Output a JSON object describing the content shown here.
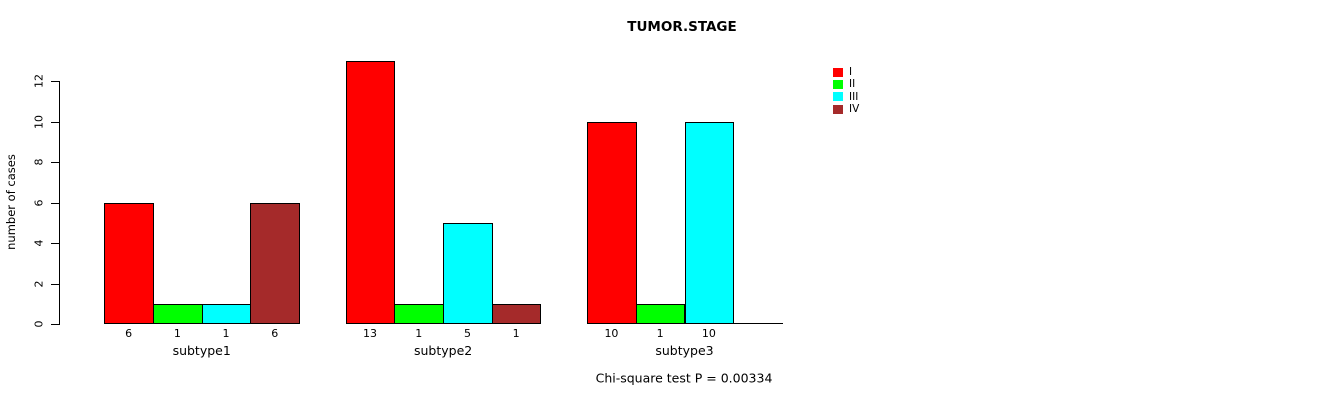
{
  "chart_data": {
    "type": "bar",
    "title": "TUMOR.STAGE",
    "xlabel": "",
    "ylabel": "number of cases",
    "ylim": [
      0,
      13
    ],
    "yticks": [
      0,
      2,
      4,
      6,
      8,
      10,
      12
    ],
    "grid": false,
    "legend_position": "top-right",
    "categories": [
      "subtype1",
      "subtype2",
      "subtype3"
    ],
    "series": [
      {
        "name": "I",
        "color": "#FF0000",
        "values": [
          6,
          13,
          10
        ]
      },
      {
        "name": "II",
        "color": "#00FF00",
        "values": [
          1,
          1,
          1
        ]
      },
      {
        "name": "III",
        "color": "#00FFFF",
        "values": [
          1,
          5,
          10
        ]
      },
      {
        "name": "IV",
        "color": "#A52A2A",
        "values": [
          6,
          1,
          0
        ]
      }
    ],
    "bar_value_labels": [
      [
        "6",
        "1",
        "1",
        "6"
      ],
      [
        "13",
        "1",
        "5",
        "1"
      ],
      [
        "10",
        "1",
        "10",
        ""
      ]
    ],
    "annotation": "Chi-square test P = 0.00334",
    "bar_border_color": "#000000"
  }
}
